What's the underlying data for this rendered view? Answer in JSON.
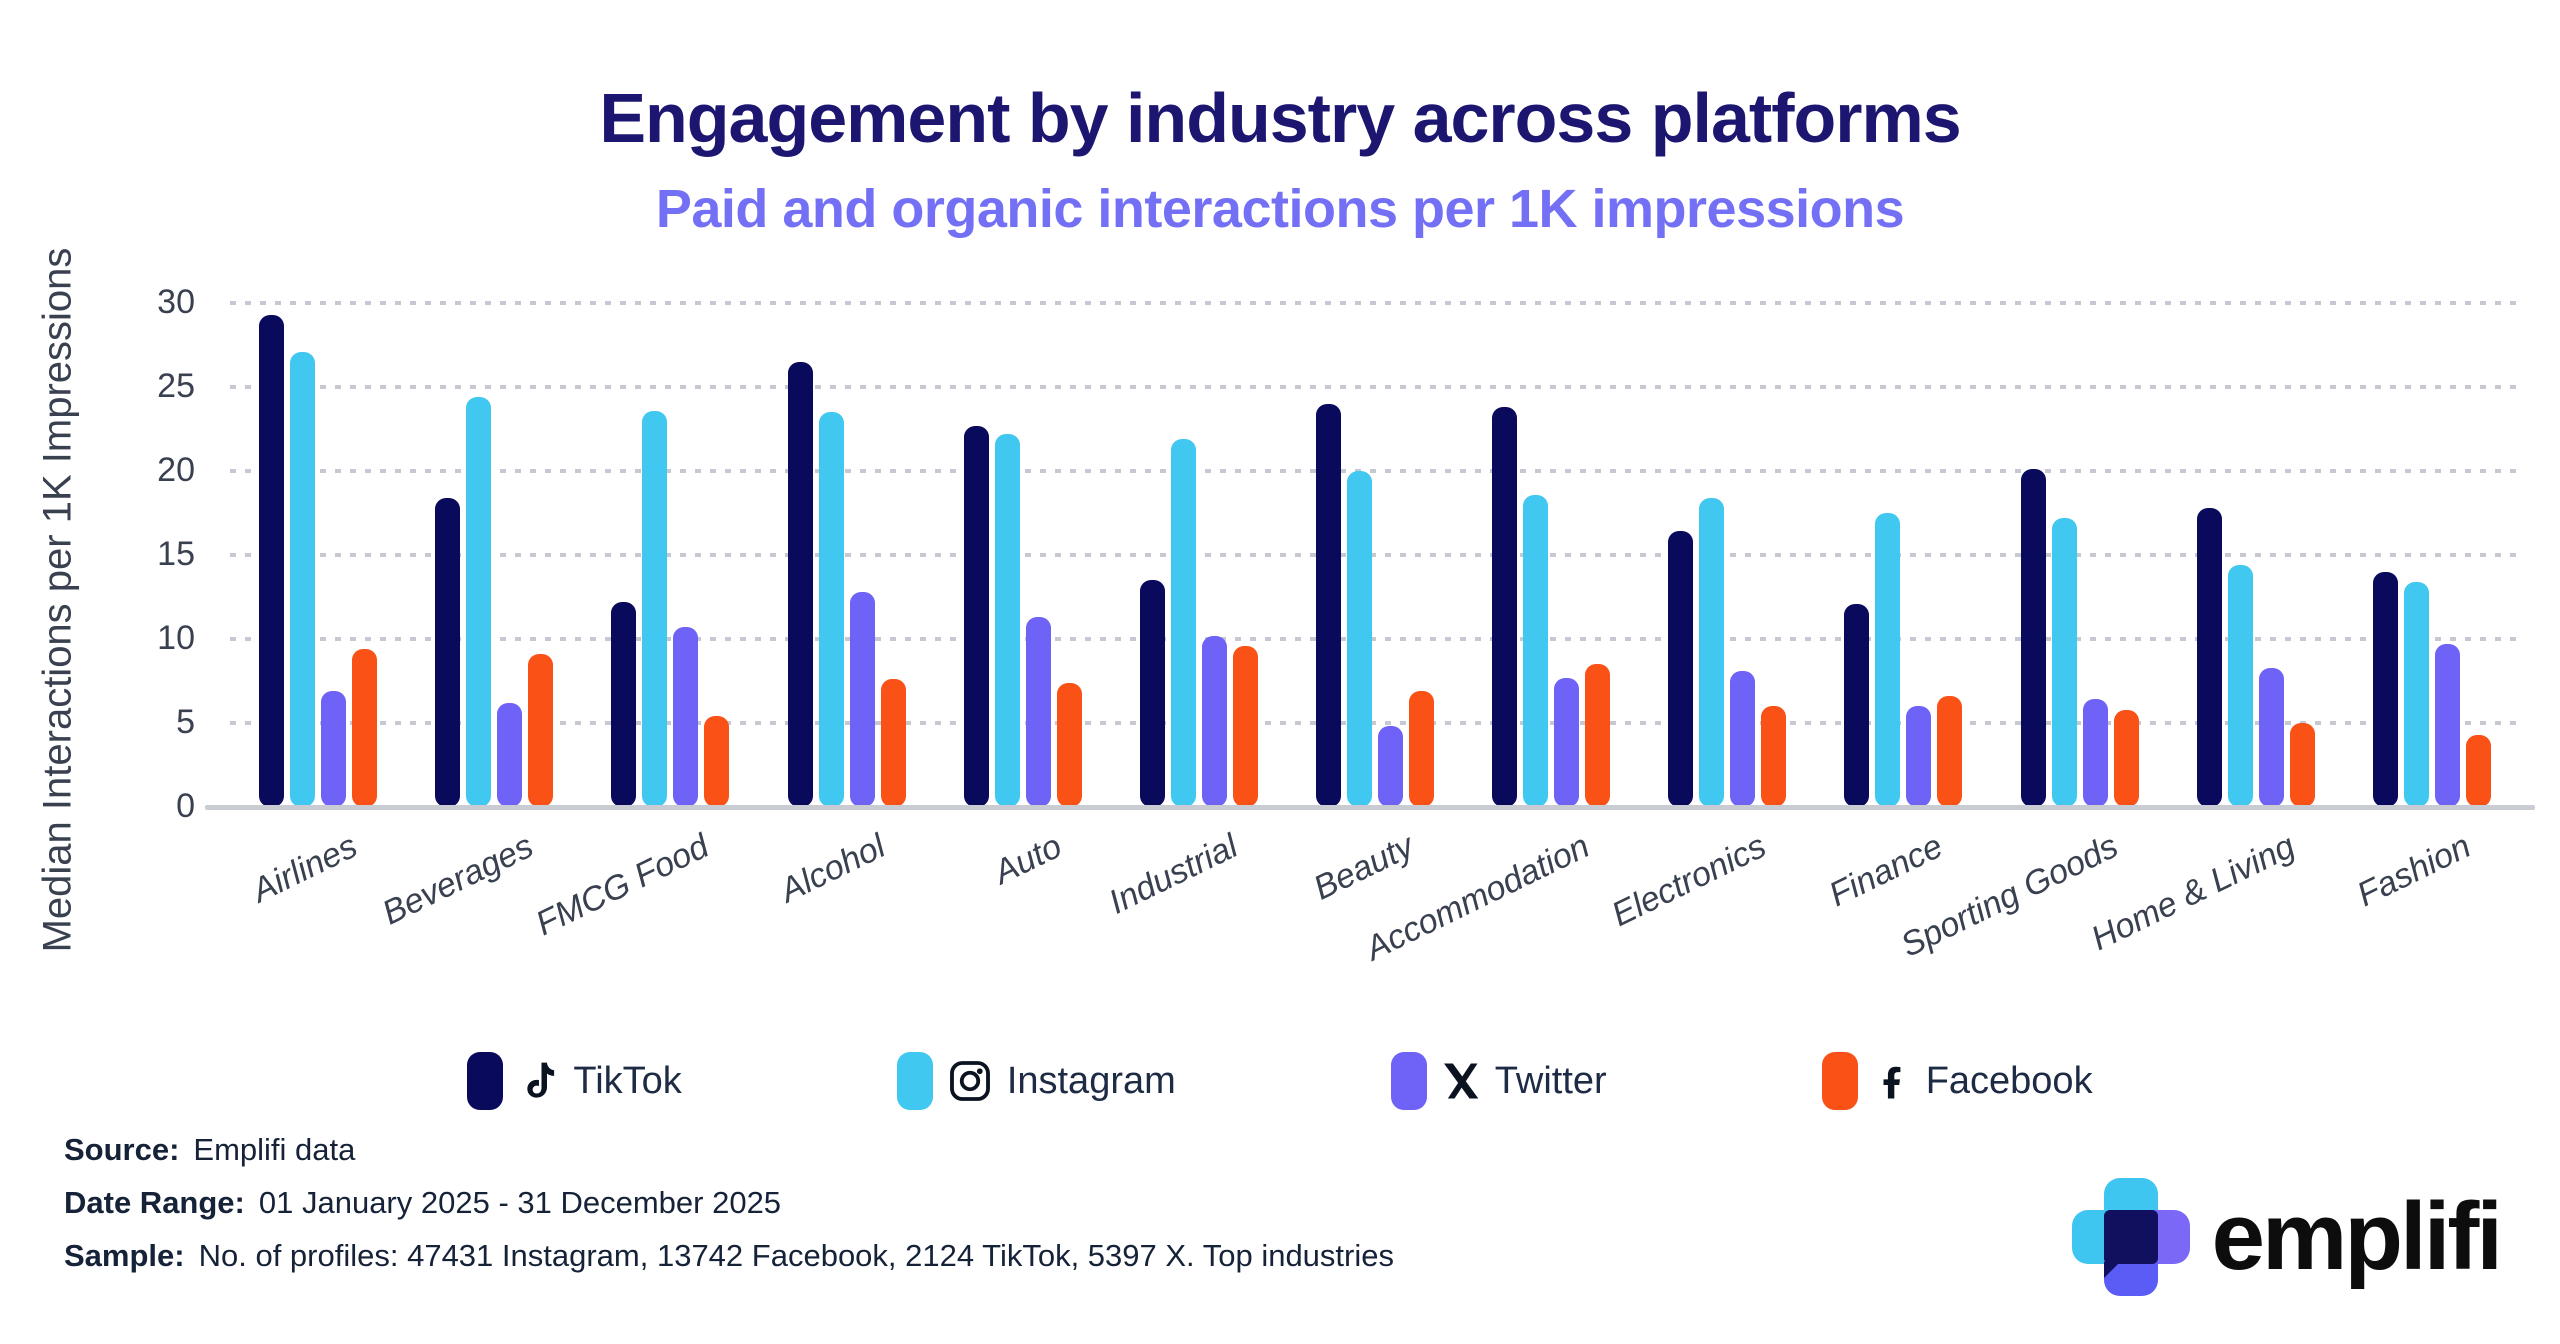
{
  "title": "Engagement by industry across platforms",
  "subtitle": "Paid and organic interactions per 1K impressions",
  "y_axis_title": "Median Interactions per 1K Impressions",
  "chart_data": {
    "type": "bar",
    "categories": [
      "Airlines",
      "Beverages",
      "FMCG Food",
      "Alcohol",
      "Auto",
      "Industrial",
      "Beauty",
      "Accommodation",
      "Electronics",
      "Finance",
      "Sporting Goods",
      "Home & Living",
      "Fashion"
    ],
    "series": [
      {
        "name": "TikTok",
        "color": "#0a0a5c",
        "values": [
          29.3,
          18.4,
          12.2,
          26.5,
          22.7,
          13.5,
          24.0,
          23.8,
          16.4,
          12.1,
          20.1,
          17.8,
          14.0
        ]
      },
      {
        "name": "Instagram",
        "color": "#41c8f0",
        "values": [
          27.1,
          24.4,
          23.6,
          23.5,
          22.2,
          21.9,
          20.0,
          18.6,
          18.4,
          17.5,
          17.2,
          14.4,
          13.4
        ]
      },
      {
        "name": "Twitter",
        "color": "#6e63f6",
        "values": [
          6.9,
          6.2,
          10.7,
          12.8,
          11.3,
          10.2,
          4.8,
          7.7,
          8.1,
          6.0,
          6.4,
          8.3,
          9.7
        ]
      },
      {
        "name": "Facebook",
        "color": "#fa5117",
        "values": [
          9.4,
          9.1,
          5.4,
          7.6,
          7.4,
          9.6,
          6.9,
          8.5,
          6.0,
          6.6,
          5.8,
          5.0,
          4.3
        ]
      }
    ],
    "title": "Engagement by industry across platforms",
    "subtitle": "Paid and organic interactions per 1K impressions",
    "xlabel": "",
    "ylabel": "Median Interactions per 1K Impressions",
    "ylim": [
      0,
      30
    ],
    "yticks": [
      0,
      5,
      10,
      15,
      20,
      25,
      30
    ],
    "grid": "dotted-horizontal",
    "legend_position": "bottom"
  },
  "legend": {
    "items": [
      {
        "label": "TikTok",
        "color": "#0a0a5c",
        "icon": "tiktok-icon"
      },
      {
        "label": "Instagram",
        "color": "#41c8f0",
        "icon": "instagram-icon"
      },
      {
        "label": "Twitter",
        "color": "#6e63f6",
        "icon": "x-twitter-icon"
      },
      {
        "label": "Facebook",
        "color": "#fa5117",
        "icon": "facebook-icon"
      }
    ]
  },
  "footer": {
    "source_label": "Source:",
    "source_value": "Emplifi data",
    "date_label": "Date Range:",
    "date_value": "01 January 2025 - 31 December 2025",
    "sample_label": "Sample:",
    "sample_value": "No. of profiles: 47431 Instagram, 13742 Facebook, 2124 TikTok, 5397 X. Top industries"
  },
  "logo": {
    "text": "emplifi"
  }
}
